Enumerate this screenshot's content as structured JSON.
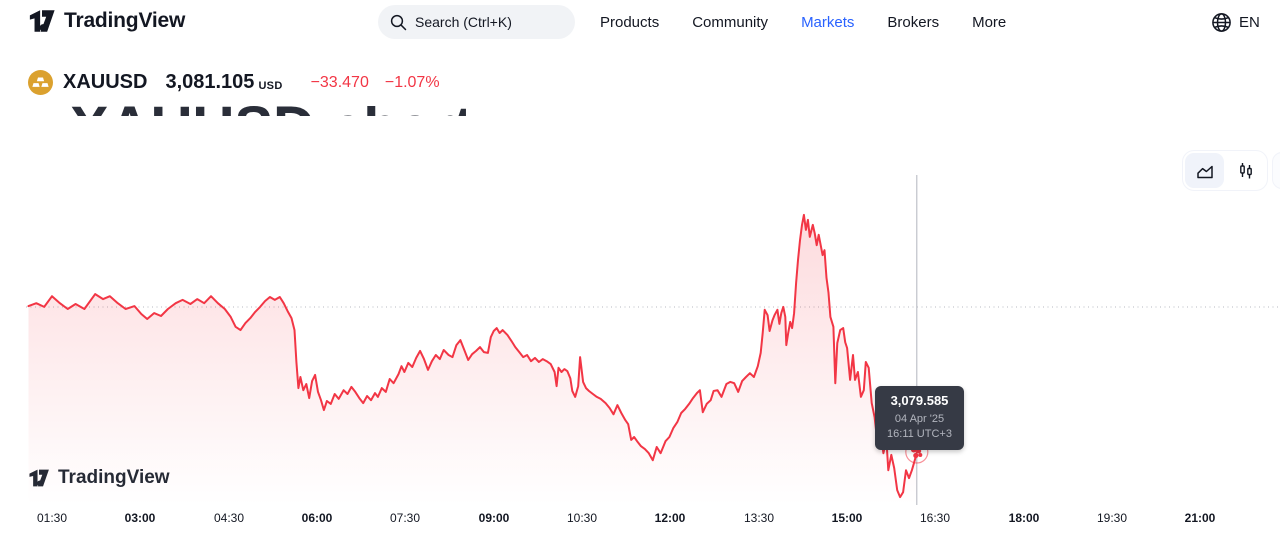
{
  "nav": {
    "brand": "TradingView",
    "search_placeholder": "Search (Ctrl+K)",
    "items": [
      {
        "label": "Products"
      },
      {
        "label": "Community"
      },
      {
        "label": "Markets"
      },
      {
        "label": "Brokers"
      },
      {
        "label": "More"
      }
    ],
    "lang": "EN"
  },
  "symbol": {
    "ticker": "XAUUSD",
    "price": "3,081.105",
    "currency": "USD",
    "change": "−33.470",
    "change_percent": "−1.07%"
  },
  "section_heading": "XAUUSD chart",
  "watermark": "TradingView",
  "tooltip": {
    "price": "3,079.585",
    "date": "04 Apr '25",
    "time": "16:11 UTC+3"
  },
  "colors": {
    "accent_blue": "#2962FF",
    "down_red": "#F23645",
    "gold_icon": "#DBA12E",
    "tooltip_bg": "#363A45"
  },
  "chart_data": {
    "type": "area",
    "symbol": "XAUUSD",
    "prev_close": 3114.575,
    "last_price": 3079.585,
    "last_time_label": "16:11 UTC+3",
    "line_color": "#F23645",
    "fill_color_top": "rgba(242,54,69,0.18)",
    "grid": "prev-close dotted line only",
    "legend_position": "none",
    "x_axis": {
      "unit": "minutes_from_midnight",
      "t_min": 37,
      "t_max": 1341,
      "ticks": [
        {
          "label": "01:30",
          "t": 90,
          "bold": false
        },
        {
          "label": "03:00",
          "t": 180,
          "bold": true
        },
        {
          "label": "04:30",
          "t": 270,
          "bold": false
        },
        {
          "label": "06:00",
          "t": 360,
          "bold": true
        },
        {
          "label": "07:30",
          "t": 450,
          "bold": false
        },
        {
          "label": "09:00",
          "t": 540,
          "bold": true
        },
        {
          "label": "10:30",
          "t": 630,
          "bold": false
        },
        {
          "label": "12:00",
          "t": 720,
          "bold": true
        },
        {
          "label": "13:30",
          "t": 810,
          "bold": false
        },
        {
          "label": "15:00",
          "t": 900,
          "bold": true
        },
        {
          "label": "16:30",
          "t": 990,
          "bold": false
        },
        {
          "label": "18:00",
          "t": 1080,
          "bold": true
        },
        {
          "label": "19:30",
          "t": 1170,
          "bold": false
        },
        {
          "label": "21:00",
          "t": 1260,
          "bold": true
        }
      ]
    },
    "y_axis": {
      "min": 3066.8,
      "max": 3157.3
    },
    "crosshair_t": 971,
    "marker": {
      "t": 971,
      "price": 3079.585
    },
    "points": [
      [
        66,
        3114.8
      ],
      [
        74,
        3115.5
      ],
      [
        82,
        3114.6
      ],
      [
        90,
        3117.2
      ],
      [
        98,
        3115.5
      ],
      [
        106,
        3114.1
      ],
      [
        114,
        3115.3
      ],
      [
        123,
        3114.1
      ],
      [
        134,
        3117.7
      ],
      [
        142,
        3116.5
      ],
      [
        149,
        3117.2
      ],
      [
        157,
        3115.5
      ],
      [
        165,
        3114.1
      ],
      [
        174,
        3114.8
      ],
      [
        181,
        3112.9
      ],
      [
        187,
        3111.7
      ],
      [
        194,
        3113.1
      ],
      [
        201,
        3112.4
      ],
      [
        208,
        3114.1
      ],
      [
        216,
        3115.5
      ],
      [
        223,
        3116.3
      ],
      [
        231,
        3115.3
      ],
      [
        238,
        3116.5
      ],
      [
        245,
        3115.5
      ],
      [
        252,
        3117.2
      ],
      [
        259,
        3115.5
      ],
      [
        266,
        3114.1
      ],
      [
        272,
        3112.2
      ],
      [
        277,
        3109.8
      ],
      [
        282,
        3109.0
      ],
      [
        287,
        3110.7
      ],
      [
        292,
        3111.9
      ],
      [
        297,
        3113.4
      ],
      [
        302,
        3114.6
      ],
      [
        307,
        3116.0
      ],
      [
        312,
        3117.0
      ],
      [
        317,
        3116.3
      ],
      [
        322,
        3117.0
      ],
      [
        326,
        3115.5
      ],
      [
        330,
        3113.6
      ],
      [
        334,
        3111.9
      ],
      [
        337,
        3109.0
      ],
      [
        339,
        3101.3
      ],
      [
        341,
        3095.0
      ],
      [
        343,
        3097.7
      ],
      [
        346,
        3094.5
      ],
      [
        349,
        3096.0
      ],
      [
        352,
        3092.6
      ],
      [
        355,
        3096.7
      ],
      [
        358,
        3098.2
      ],
      [
        361,
        3094.1
      ],
      [
        364,
        3092.1
      ],
      [
        367,
        3089.7
      ],
      [
        370,
        3091.9
      ],
      [
        374,
        3091.2
      ],
      [
        378,
        3093.6
      ],
      [
        382,
        3092.4
      ],
      [
        387,
        3094.5
      ],
      [
        391,
        3093.6
      ],
      [
        395,
        3095.3
      ],
      [
        399,
        3094.1
      ],
      [
        403,
        3092.6
      ],
      [
        407,
        3091.4
      ],
      [
        411,
        3093.1
      ],
      [
        415,
        3092.1
      ],
      [
        419,
        3093.8
      ],
      [
        422,
        3092.9
      ],
      [
        426,
        3095.0
      ],
      [
        430,
        3094.1
      ],
      [
        434,
        3097.2
      ],
      [
        438,
        3096.2
      ],
      [
        443,
        3098.4
      ],
      [
        446,
        3100.3
      ],
      [
        449,
        3098.9
      ],
      [
        453,
        3101.1
      ],
      [
        457,
        3100.1
      ],
      [
        461,
        3102.3
      ],
      [
        465,
        3104.0
      ],
      [
        469,
        3102.0
      ],
      [
        473,
        3099.4
      ],
      [
        477,
        3101.5
      ],
      [
        481,
        3103.0
      ],
      [
        485,
        3102.0
      ],
      [
        489,
        3104.2
      ],
      [
        494,
        3103.0
      ],
      [
        498,
        3102.5
      ],
      [
        502,
        3105.4
      ],
      [
        506,
        3106.6
      ],
      [
        510,
        3104.2
      ],
      [
        514,
        3101.8
      ],
      [
        518,
        3103.2
      ],
      [
        522,
        3104.0
      ],
      [
        526,
        3104.9
      ],
      [
        530,
        3103.7
      ],
      [
        534,
        3103.5
      ],
      [
        537,
        3107.3
      ],
      [
        540,
        3108.8
      ],
      [
        543,
        3109.5
      ],
      [
        546,
        3108.3
      ],
      [
        549,
        3109.0
      ],
      [
        554,
        3107.8
      ],
      [
        558,
        3106.4
      ],
      [
        562,
        3104.9
      ],
      [
        566,
        3103.7
      ],
      [
        570,
        3102.5
      ],
      [
        574,
        3103.0
      ],
      [
        578,
        3101.5
      ],
      [
        582,
        3102.3
      ],
      [
        586,
        3101.3
      ],
      [
        590,
        3102.0
      ],
      [
        594,
        3101.5
      ],
      [
        598,
        3100.8
      ],
      [
        602,
        3098.9
      ],
      [
        604,
        3095.5
      ],
      [
        606,
        3099.9
      ],
      [
        609,
        3098.9
      ],
      [
        612,
        3099.6
      ],
      [
        615,
        3099.1
      ],
      [
        618,
        3097.4
      ],
      [
        620,
        3094.3
      ],
      [
        623,
        3092.9
      ],
      [
        626,
        3095.5
      ],
      [
        628,
        3102.5
      ],
      [
        631,
        3096.5
      ],
      [
        634,
        3095.0
      ],
      [
        637,
        3094.3
      ],
      [
        641,
        3093.6
      ],
      [
        645,
        3092.9
      ],
      [
        649,
        3092.4
      ],
      [
        654,
        3091.4
      ],
      [
        658,
        3090.2
      ],
      [
        662,
        3088.7
      ],
      [
        666,
        3090.9
      ],
      [
        670,
        3089.0
      ],
      [
        674,
        3087.3
      ],
      [
        677,
        3086.3
      ],
      [
        680,
        3082.5
      ],
      [
        683,
        3083.2
      ],
      [
        686,
        3082.2
      ],
      [
        690,
        3081.0
      ],
      [
        694,
        3080.3
      ],
      [
        698,
        3079.3
      ],
      [
        702,
        3077.6
      ],
      [
        706,
        3080.8
      ],
      [
        710,
        3079.3
      ],
      [
        715,
        3082.2
      ],
      [
        719,
        3083.2
      ],
      [
        723,
        3085.4
      ],
      [
        727,
        3086.8
      ],
      [
        731,
        3089.0
      ],
      [
        735,
        3090.0
      ],
      [
        739,
        3091.2
      ],
      [
        743,
        3092.6
      ],
      [
        747,
        3093.8
      ],
      [
        750,
        3094.5
      ],
      [
        753,
        3089.2
      ],
      [
        757,
        3091.2
      ],
      [
        761,
        3092.1
      ],
      [
        764,
        3094.3
      ],
      [
        768,
        3094.5
      ],
      [
        772,
        3092.9
      ],
      [
        777,
        3096.0
      ],
      [
        781,
        3096.5
      ],
      [
        785,
        3096.2
      ],
      [
        789,
        3094.1
      ],
      [
        793,
        3096.7
      ],
      [
        797,
        3097.7
      ],
      [
        801,
        3098.6
      ],
      [
        805,
        3097.7
      ],
      [
        809,
        3100.3
      ],
      [
        812,
        3103.5
      ],
      [
        814,
        3108.3
      ],
      [
        816,
        3113.9
      ],
      [
        819,
        3112.6
      ],
      [
        821,
        3108.8
      ],
      [
        824,
        3111.4
      ],
      [
        826,
        3112.6
      ],
      [
        829,
        3113.9
      ],
      [
        831,
        3110.5
      ],
      [
        833,
        3113.1
      ],
      [
        835,
        3114.6
      ],
      [
        837,
        3112.2
      ],
      [
        838,
        3105.4
      ],
      [
        840,
        3108.3
      ],
      [
        842,
        3111.0
      ],
      [
        844,
        3109.5
      ],
      [
        846,
        3113.1
      ],
      [
        848,
        3120.4
      ],
      [
        850,
        3125.9
      ],
      [
        852,
        3130.7
      ],
      [
        854,
        3134.4
      ],
      [
        856,
        3136.8
      ],
      [
        858,
        3133.2
      ],
      [
        860,
        3135.6
      ],
      [
        862,
        3131.5
      ],
      [
        865,
        3134.4
      ],
      [
        867,
        3132.4
      ],
      [
        869,
        3129.5
      ],
      [
        871,
        3132.0
      ],
      [
        875,
        3127.1
      ],
      [
        877,
        3128.3
      ],
      [
        879,
        3121.6
      ],
      [
        881,
        3118.0
      ],
      [
        883,
        3112.2
      ],
      [
        886,
        3109.8
      ],
      [
        888,
        3096.2
      ],
      [
        890,
        3105.9
      ],
      [
        893,
        3109.0
      ],
      [
        896,
        3109.5
      ],
      [
        898,
        3106.1
      ],
      [
        900,
        3104.7
      ],
      [
        903,
        3097.0
      ],
      [
        906,
        3103.0
      ],
      [
        908,
        3097.0
      ],
      [
        911,
        3098.9
      ],
      [
        914,
        3092.9
      ],
      [
        917,
        3094.5
      ],
      [
        919,
        3101.3
      ],
      [
        922,
        3099.9
      ],
      [
        925,
        3091.4
      ],
      [
        928,
        3088.0
      ],
      [
        931,
        3081.7
      ],
      [
        934,
        3084.2
      ],
      [
        937,
        3079.3
      ],
      [
        940,
        3082.5
      ],
      [
        942,
        3075.2
      ],
      [
        945,
        3078.9
      ],
      [
        948,
        3075.7
      ],
      [
        951,
        3070.4
      ],
      [
        954,
        3068.7
      ],
      [
        957,
        3069.9
      ],
      [
        960,
        3075.2
      ],
      [
        963,
        3073.3
      ],
      [
        966,
        3075.2
      ],
      [
        969,
        3077.6
      ],
      [
        971,
        3079.585
      ]
    ]
  }
}
